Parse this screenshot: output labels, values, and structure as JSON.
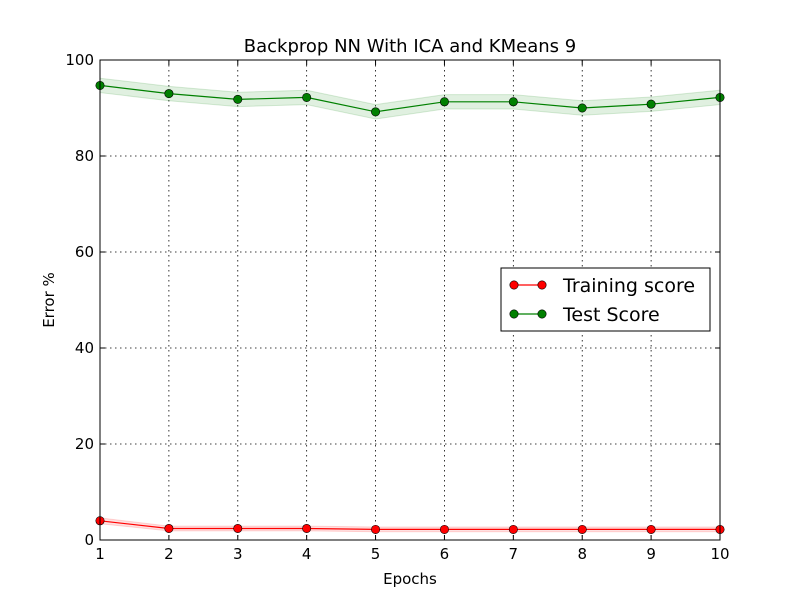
{
  "chart_data": {
    "type": "line",
    "title": "Backprop NN With ICA and KMeans 9",
    "xlabel": "Epochs",
    "ylabel": "Error %",
    "xlim": [
      1,
      10
    ],
    "ylim": [
      0,
      100
    ],
    "x": [
      1,
      2,
      3,
      4,
      5,
      6,
      7,
      8,
      9,
      10
    ],
    "xticks": [
      "1",
      "2",
      "3",
      "4",
      "5",
      "6",
      "7",
      "8",
      "9",
      "10"
    ],
    "yticks": [
      "0",
      "20",
      "40",
      "60",
      "80",
      "100"
    ],
    "grid": true,
    "legend_position": "center-right",
    "series": [
      {
        "name": "Training score",
        "color": "#ff0000",
        "marker_color": "#cc0000",
        "values": [
          4.0,
          2.4,
          2.4,
          2.4,
          2.2,
          2.2,
          2.2,
          2.2,
          2.2,
          2.2
        ],
        "band": [
          0.6,
          0.5,
          0.5,
          0.5,
          0.5,
          0.5,
          0.5,
          0.5,
          0.5,
          0.5
        ]
      },
      {
        "name": "Test Score",
        "color": "#008000",
        "marker_color": "#007000",
        "values": [
          94.7,
          93.0,
          91.8,
          92.2,
          89.2,
          91.3,
          91.3,
          90.0,
          90.8,
          92.2
        ],
        "band": [
          1.5,
          1.5,
          1.5,
          1.5,
          1.5,
          1.5,
          1.5,
          1.5,
          1.5,
          1.5
        ]
      }
    ]
  }
}
